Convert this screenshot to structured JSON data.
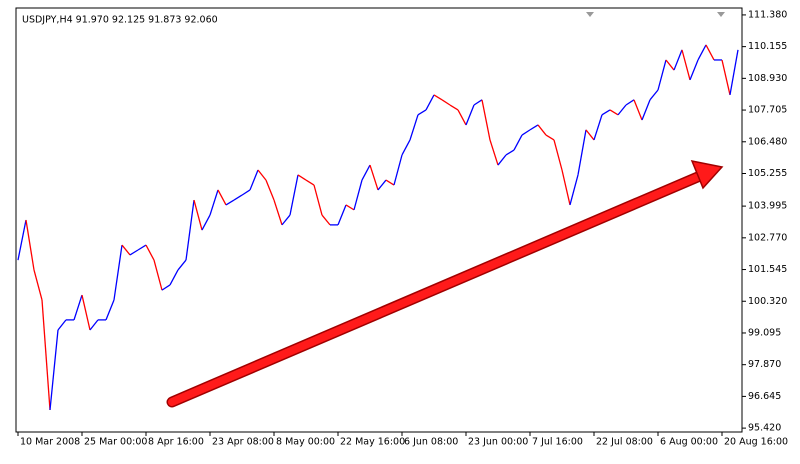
{
  "chart_data": {
    "type": "line",
    "title": "USDJPY,H4  91.970 92.125 91.873 92.060",
    "categories": [
      "10 Mar 2008",
      null,
      null,
      null,
      null,
      null,
      null,
      null,
      "25 Mar 00:00",
      null,
      null,
      null,
      null,
      null,
      null,
      null,
      "8 Apr 16:00",
      null,
      null,
      null,
      null,
      null,
      null,
      null,
      "23 Apr 08:00",
      null,
      null,
      null,
      null,
      null,
      null,
      null,
      "8 May 00:00",
      null,
      null,
      null,
      null,
      null,
      null,
      null,
      "22 May 16:00",
      null,
      null,
      null,
      null,
      null,
      null,
      null,
      "6 Jun 08:00",
      null,
      null,
      null,
      null,
      null,
      null,
      null,
      "23 Jun 00:00",
      null,
      null,
      null,
      null,
      null,
      null,
      null,
      "7 Jul 16:00",
      null,
      null,
      null,
      null,
      null,
      null,
      null,
      "22 Jul 08:00",
      null,
      null,
      null,
      null,
      null,
      null,
      null,
      "6 Aug 00:00",
      null,
      null,
      null,
      null,
      null,
      null,
      null,
      "20 Aug 16:00",
      null,
      null
    ],
    "values": [
      101.91,
      103.46,
      101.53,
      100.37,
      96.12,
      99.21,
      99.6,
      99.6,
      100.56,
      99.21,
      99.6,
      99.6,
      100.37,
      102.49,
      102.11,
      102.3,
      102.49,
      101.91,
      100.75,
      100.95,
      101.53,
      101.91,
      104.23,
      103.07,
      103.65,
      104.62,
      104.04,
      104.23,
      104.42,
      104.62,
      105.39,
      105.0,
      104.23,
      103.27,
      103.65,
      105.2,
      105.0,
      104.81,
      103.65,
      103.27,
      103.27,
      104.04,
      103.85,
      105.0,
      105.58,
      104.62,
      105.0,
      104.81,
      105.97,
      106.55,
      107.52,
      107.71,
      108.29,
      108.1,
      107.9,
      107.71,
      107.13,
      107.9,
      108.1,
      106.55,
      105.58,
      105.97,
      106.16,
      106.74,
      106.94,
      107.13,
      106.74,
      106.55,
      105.39,
      104.04,
      105.2,
      106.94,
      106.55,
      107.52,
      107.71,
      107.52,
      107.9,
      108.1,
      107.32,
      108.1,
      108.48,
      109.64,
      109.25,
      110.03,
      108.87,
      109.64,
      110.22,
      109.64,
      109.64,
      108.29,
      110.03
    ],
    "up_color": "#0000ff",
    "down_color": "#ff0000",
    "ylim": [
      95.27,
      111.57
    ],
    "yticks": [
      {
        "value": 111.38,
        "label": "111.380"
      },
      {
        "value": 110.155,
        "label": "110.155"
      },
      {
        "value": 108.93,
        "label": "108.930"
      },
      {
        "value": 107.705,
        "label": "107.705"
      },
      {
        "value": 106.48,
        "label": "106.480"
      },
      {
        "value": 105.255,
        "label": "105.255"
      },
      {
        "value": 103.995,
        "label": "103.995"
      },
      {
        "value": 102.77,
        "label": "102.770"
      },
      {
        "value": 101.545,
        "label": "101.545"
      },
      {
        "value": 100.32,
        "label": "100.320"
      },
      {
        "value": 99.095,
        "label": "99.095"
      },
      {
        "value": 97.87,
        "label": "97.870"
      },
      {
        "value": 96.645,
        "label": "96.645"
      },
      {
        "value": 95.42,
        "label": "95.420"
      }
    ],
    "grid": false
  }
}
